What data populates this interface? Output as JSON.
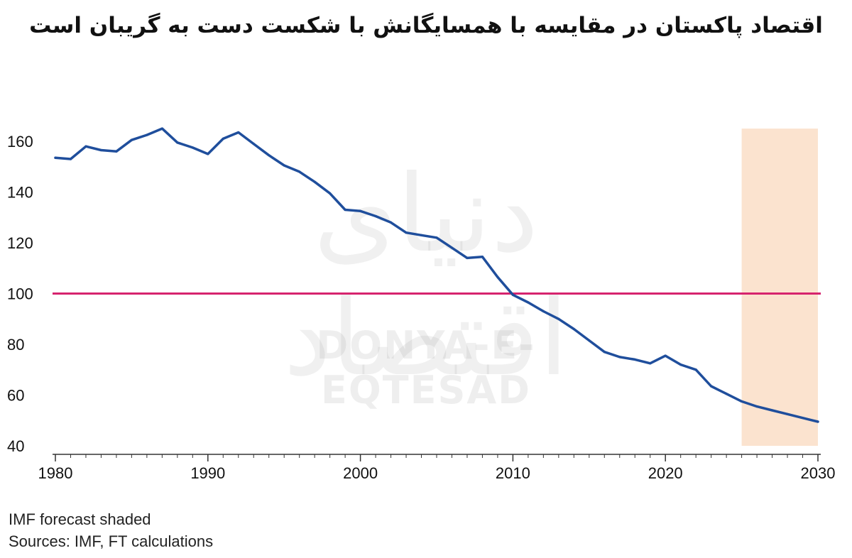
{
  "title": "اقتصاد پاکستان در مقایسه با همسایگانش با شکست دست به گریبان است",
  "footnotes": {
    "line1": "IMF forecast shaded",
    "line2": "Sources: IMF, FT calculations"
  },
  "watermark": {
    "fa": "دنیای اقتصاد",
    "en": "DONYA-E-EQTESAD"
  },
  "colors": {
    "series": "#1f4e9c",
    "reference": "#d6246e",
    "forecast_shade": "#fbe3cf",
    "axis": "#333333",
    "tick_text": "#111111"
  },
  "chart_data": {
    "type": "line",
    "title": "",
    "xlabel": "",
    "ylabel": "",
    "xlim": [
      1980,
      2030
    ],
    "ylim": [
      40,
      165
    ],
    "x_ticks": [
      1980,
      1990,
      2000,
      2010,
      2020,
      2030
    ],
    "x_tick_labels": [
      "1980",
      "1990",
      "2000",
      "2010",
      "2020",
      "2030"
    ],
    "y_ticks": [
      40,
      60,
      80,
      100,
      120,
      140,
      160
    ],
    "y_tick_labels": [
      "40",
      "60",
      "80",
      "100",
      "120",
      "140",
      "160"
    ],
    "grid": false,
    "reference_line": {
      "y": 100
    },
    "forecast_shaded_range": [
      2025,
      2030
    ],
    "series": [
      {
        "name": "",
        "x": [
          1980,
          1981,
          1982,
          1983,
          1984,
          1985,
          1986,
          1987,
          1988,
          1989,
          1990,
          1991,
          1992,
          1993,
          1994,
          1995,
          1996,
          1997,
          1998,
          1999,
          2000,
          2001,
          2002,
          2003,
          2004,
          2005,
          2006,
          2007,
          2008,
          2009,
          2010,
          2011,
          2012,
          2013,
          2014,
          2015,
          2016,
          2017,
          2018,
          2019,
          2020,
          2021,
          2022,
          2023,
          2024,
          2025,
          2026,
          2027,
          2028,
          2029,
          2030
        ],
        "values": [
          153.5,
          153,
          158,
          156.5,
          156,
          160.5,
          162.5,
          165,
          159.5,
          157.5,
          155,
          161,
          163.5,
          159,
          154.5,
          150.5,
          148,
          144,
          139.5,
          133,
          132.5,
          130.5,
          128,
          124,
          123,
          122,
          118,
          114,
          114.5,
          106.5,
          99.5,
          96.5,
          93,
          90,
          86,
          81.5,
          77,
          75,
          74,
          72.5,
          75.5,
          72,
          70,
          63.5,
          60.5,
          57.5,
          55.5,
          54,
          52.5,
          51,
          49.5
        ]
      }
    ]
  }
}
